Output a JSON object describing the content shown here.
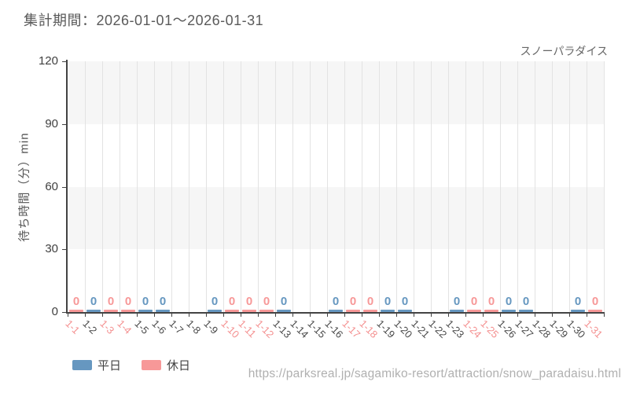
{
  "header": {
    "period_label": "集計期間：2026-01-01～2026-01-31"
  },
  "chart_data": {
    "type": "bar",
    "title": "スノーパラダイス",
    "ylabel": "待ち時間（分）min",
    "ylim": [
      0,
      120
    ],
    "yticks": [
      0,
      30,
      60,
      90,
      120
    ],
    "grid": true,
    "legend_position": "bottom-left",
    "categories": [
      "1-1",
      "1-2",
      "1-3",
      "1-4",
      "1-5",
      "1-6",
      "1-7",
      "1-8",
      "1-9",
      "1-10",
      "1-11",
      "1-12",
      "1-13",
      "1-14",
      "1-15",
      "1-16",
      "1-17",
      "1-18",
      "1-19",
      "1-20",
      "1-21",
      "1-22",
      "1-23",
      "1-24",
      "1-25",
      "1-26",
      "1-27",
      "1-28",
      "1-29",
      "1-30",
      "1-31"
    ],
    "day_types": [
      "holiday",
      "weekday",
      "holiday",
      "holiday",
      "weekday",
      "weekday",
      "no-data",
      "no-data",
      "weekday",
      "holiday",
      "holiday",
      "holiday",
      "weekday",
      "no-data",
      "no-data",
      "weekday",
      "holiday",
      "holiday",
      "weekday",
      "weekday",
      "no-data",
      "no-data",
      "weekday",
      "holiday",
      "holiday",
      "weekday",
      "weekday",
      "no-data",
      "no-data",
      "weekday",
      "holiday"
    ],
    "series": [
      {
        "name": "平日",
        "color": "#6697c0",
        "values": [
          null,
          0,
          null,
          null,
          0,
          0,
          null,
          null,
          0,
          null,
          null,
          null,
          0,
          null,
          null,
          0,
          null,
          null,
          0,
          0,
          null,
          null,
          0,
          null,
          null,
          0,
          0,
          null,
          null,
          0,
          null
        ]
      },
      {
        "name": "休日",
        "color": "#f79898",
        "values": [
          0,
          null,
          0,
          0,
          null,
          null,
          null,
          null,
          null,
          0,
          0,
          0,
          null,
          null,
          null,
          null,
          0,
          0,
          null,
          null,
          null,
          null,
          null,
          0,
          0,
          null,
          null,
          null,
          null,
          null,
          0
        ]
      }
    ],
    "colors": {
      "band": "#f6f6f6",
      "gridline": "#e3e3e3",
      "axis": "#434343",
      "y_tick_label": "#3f3f3f",
      "tick_label_weekday": "#4a4a4a",
      "tick_label_holiday": "#f49090"
    }
  },
  "footer": {
    "url": "https://parksreal.jp/sagamiko-resort/attraction/snow_paradaisu.html"
  }
}
